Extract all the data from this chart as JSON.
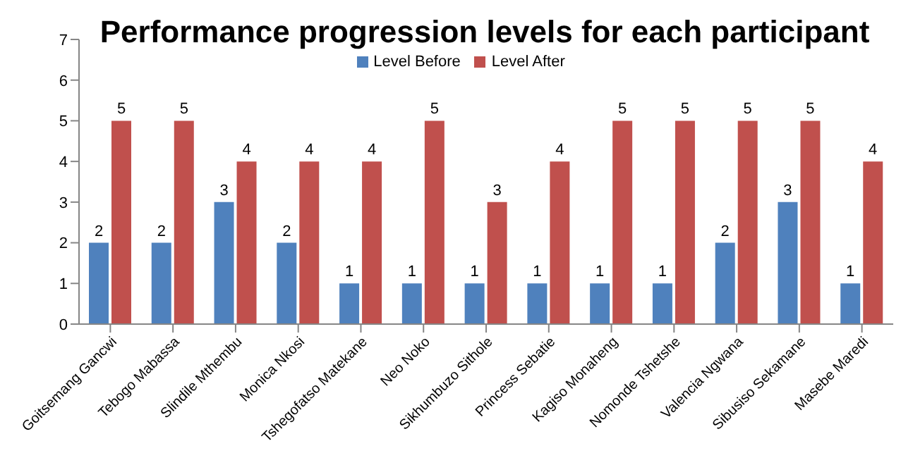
{
  "chart_data": {
    "type": "bar",
    "title": "Performance progression levels for each participant",
    "categories": [
      "Goitsemang Gancwi",
      "Tebogo Mabassa",
      "Slindile Mthembu",
      "Monica Nkosi",
      "Tshegofatso Matekane",
      "Neo Noko",
      "Sikhumbuzo Sithole",
      "Princess Sebatie",
      "Kagiso Monaheng",
      "Nomonde Tshetshe",
      "Valencia Ngwana",
      "Sibusiso Sekamane",
      "Masebe Maredi"
    ],
    "series": [
      {
        "name": "Level Before",
        "color": "#4f81bd",
        "values": [
          2,
          2,
          3,
          2,
          1,
          1,
          1,
          1,
          1,
          1,
          2,
          3,
          1
        ]
      },
      {
        "name": "Level After",
        "color": "#c0504d",
        "values": [
          5,
          5,
          4,
          4,
          4,
          5,
          3,
          4,
          5,
          5,
          5,
          5,
          4
        ]
      }
    ],
    "ylim": [
      0,
      7
    ],
    "yticks": [
      0,
      1,
      2,
      3,
      4,
      5,
      6,
      7
    ],
    "grid": false,
    "legend": "top",
    "data_labels": true
  }
}
